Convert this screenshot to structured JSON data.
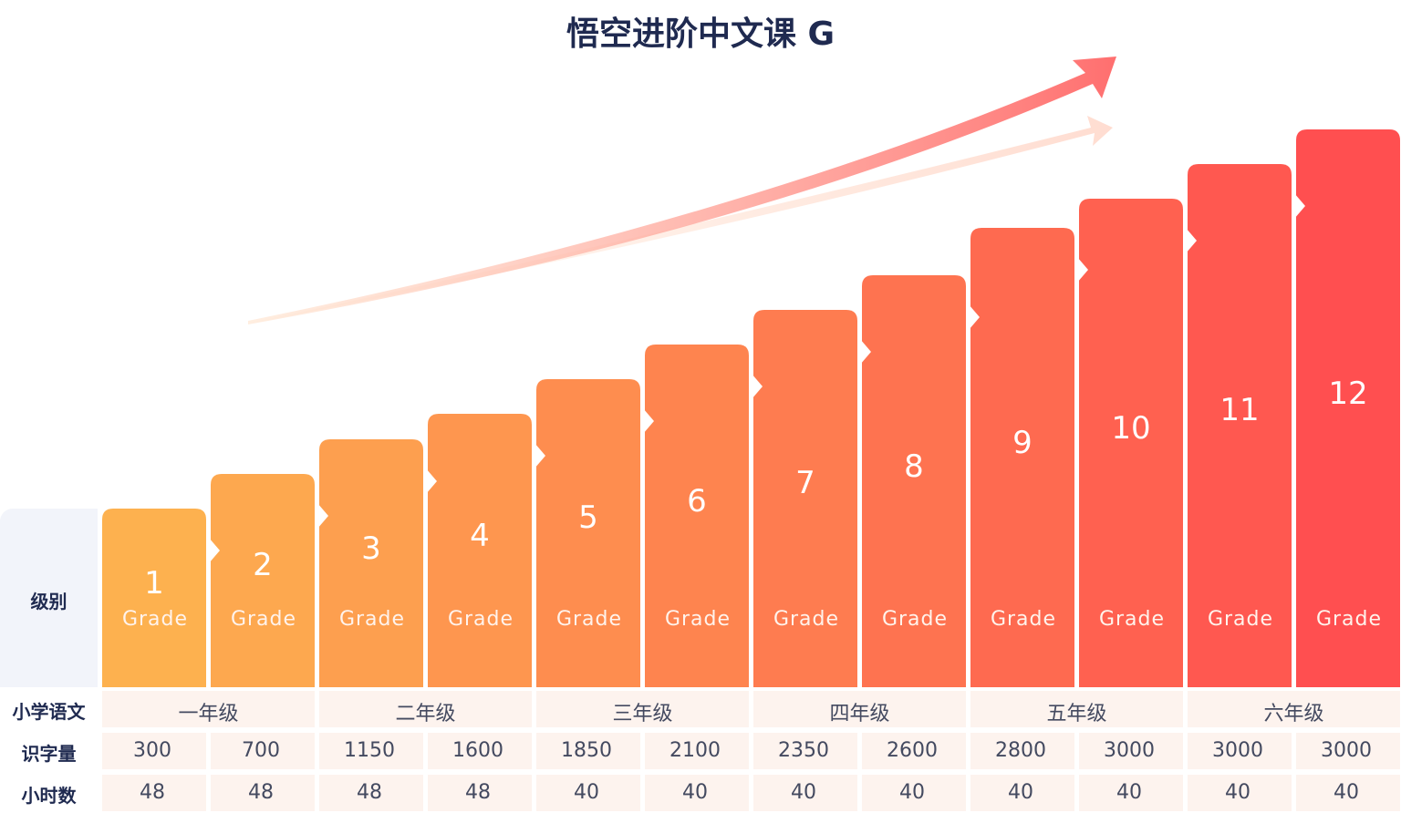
{
  "title": "悟空进阶中文课 G",
  "row_labels": {
    "level": "级别",
    "school": "小学语文",
    "characters": "识字量",
    "hours": "小时数"
  },
  "grade_word": "Grade",
  "grades": [
    "1",
    "2",
    "3",
    "4",
    "5",
    "6",
    "7",
    "8",
    "9",
    "10",
    "11",
    "12"
  ],
  "school_years": [
    "一年级",
    "二年级",
    "三年级",
    "四年级",
    "五年级",
    "六年级"
  ],
  "characters": [
    "300",
    "700",
    "1150",
    "1600",
    "1850",
    "2100",
    "2350",
    "2600",
    "2800",
    "3000",
    "3000",
    "3000"
  ],
  "hours": [
    "48",
    "48",
    "48",
    "48",
    "40",
    "40",
    "40",
    "40",
    "40",
    "40",
    "40",
    "40"
  ],
  "colors": {
    "title": "#1f2a50",
    "bar_start": "#fdb14f",
    "bar_end": "#ff4f50",
    "arrow": "#ff6b6b",
    "label_panel": "#f2f4fa",
    "row_bg": "#fdf3ee"
  },
  "icons": [
    "rising-arrow-icon"
  ]
}
